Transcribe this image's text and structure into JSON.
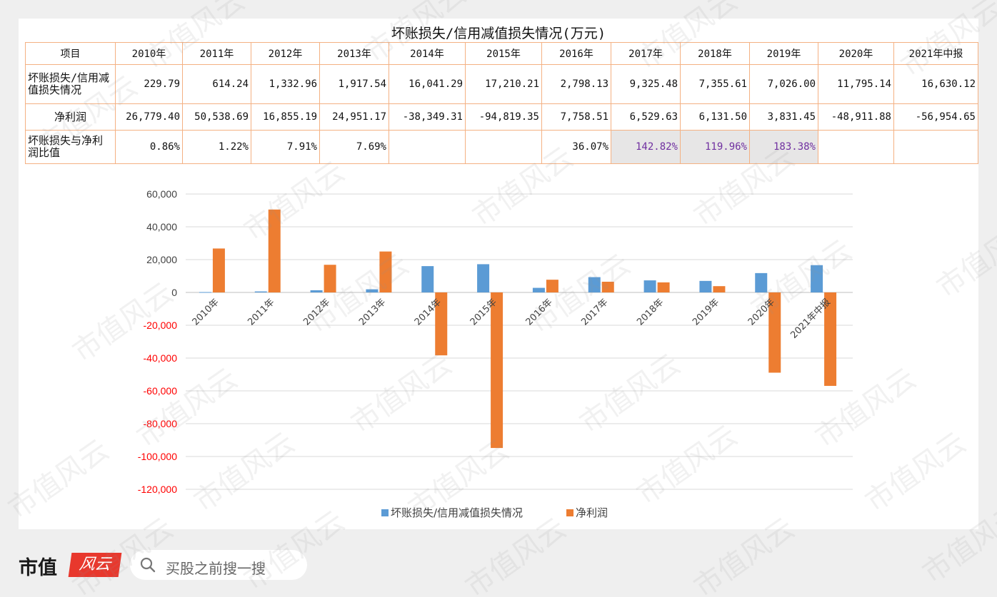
{
  "table": {
    "title": "坏账损失/信用减值损失情况(万元)",
    "header_label": "项目",
    "years": [
      "2010年",
      "2011年",
      "2012年",
      "2013年",
      "2014年",
      "2015年",
      "2016年",
      "2017年",
      "2018年",
      "2019年",
      "2020年",
      "2021年中报"
    ],
    "rows": [
      {
        "label": "坏账损失/信用减值损失情况",
        "values": [
          "229.79",
          "614.24",
          "1,332.96",
          "1,917.54",
          "16,041.29",
          "17,210.21",
          "2,798.13",
          "9,325.48",
          "7,355.61",
          "7,026.00",
          "11,795.14",
          "16,630.12"
        ]
      },
      {
        "label": "净利润",
        "values": [
          "26,779.40",
          "50,538.69",
          "16,855.19",
          "24,951.17",
          "-38,349.31",
          "-94,819.35",
          "7,758.51",
          "6,529.63",
          "6,131.50",
          "3,831.45",
          "-48,911.88",
          "-56,954.65"
        ]
      },
      {
        "label": "坏账损失与净利润比值",
        "values": [
          "0.86%",
          "1.22%",
          "7.91%",
          "7.69%",
          "",
          "",
          "36.07%",
          "142.82%",
          "119.96%",
          "183.38%",
          "",
          ""
        ]
      }
    ]
  },
  "chart_data": {
    "type": "bar",
    "categories": [
      "2010年",
      "2011年",
      "2012年",
      "2013年",
      "2014年",
      "2015年",
      "2016年",
      "2017年",
      "2018年",
      "2019年",
      "2020年",
      "2021年中报"
    ],
    "series": [
      {
        "name": "坏账损失/信用减值损失情况",
        "color": "#5b9bd5",
        "values": [
          229.79,
          614.24,
          1332.96,
          1917.54,
          16041.29,
          17210.21,
          2798.13,
          9325.48,
          7355.61,
          7026.0,
          11795.14,
          16630.12
        ]
      },
      {
        "name": "净利润",
        "color": "#ed7d31",
        "values": [
          26779.4,
          50538.69,
          16855.19,
          24951.17,
          -38349.31,
          -94819.35,
          7758.51,
          6529.63,
          6131.5,
          3831.45,
          -48911.88,
          -56954.65
        ]
      }
    ],
    "ylim": [
      -120000,
      60000
    ],
    "yticks": [
      "60,000",
      "40,000",
      "20,000",
      "0",
      "-20,000",
      "-40,000",
      "-60,000",
      "-80,000",
      "-100,000",
      "-120,000"
    ],
    "negative_tick_color": "#ff0000",
    "grid": true,
    "legend": "bottom"
  },
  "footer": {
    "brand_text": "市值",
    "brand_badge": "风云",
    "search_placeholder": "买股之前搜一搜"
  },
  "watermark": "市值风云"
}
